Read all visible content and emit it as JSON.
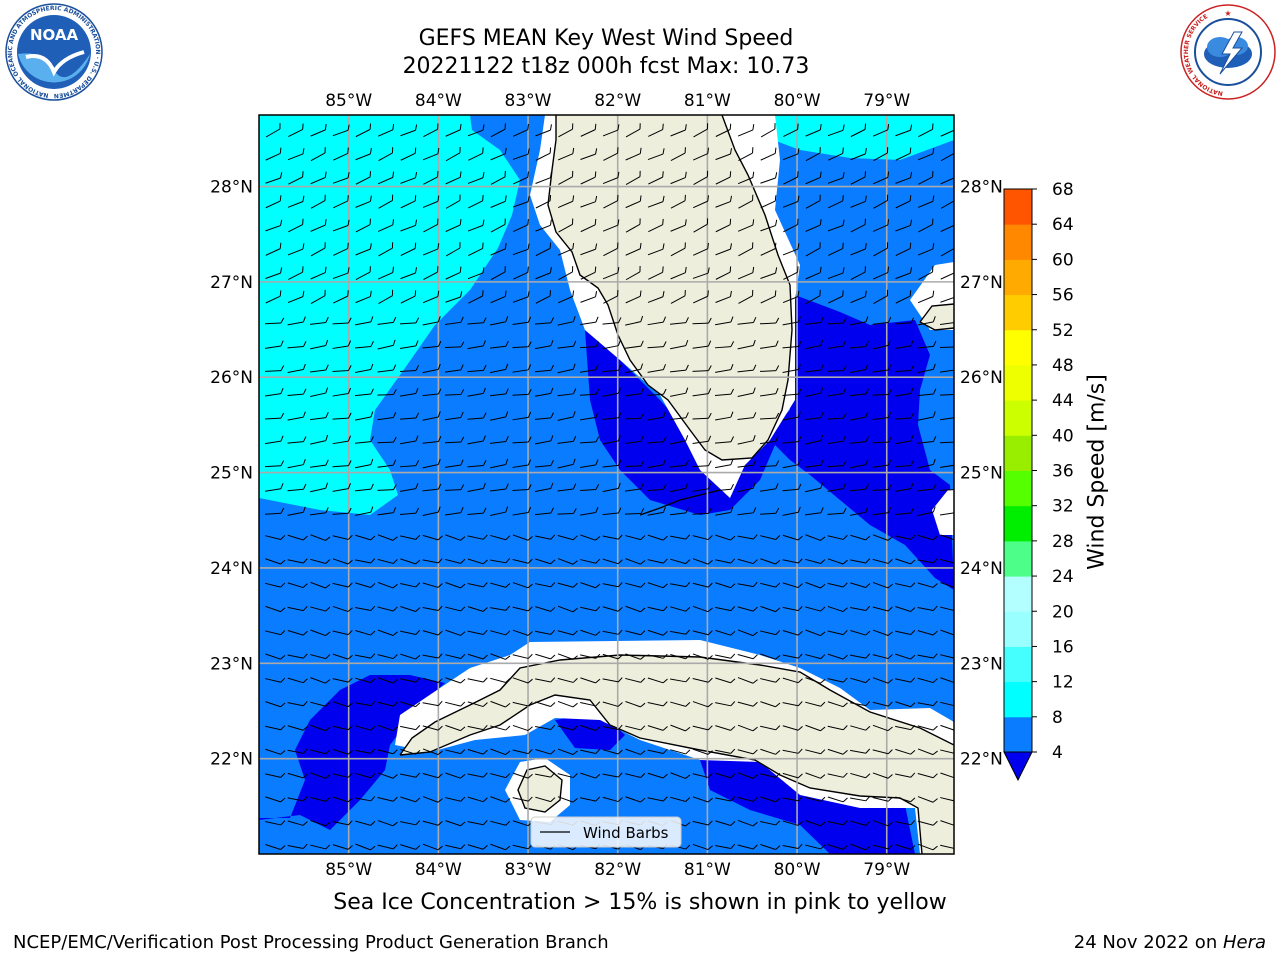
{
  "title_line1": "GEFS MEAN Key West Wind Speed",
  "title_line2": "20221122 t18z 000h fcst   Max: 10.73",
  "noaa_logo": {
    "text": "NOAA",
    "ring_text": "NATIONAL OCEANIC AND ATMOSPHERIC ADMINISTRATION · U.S. DEPARTMENT OF COMMERCE"
  },
  "nws_logo": {
    "ring_text": "NATIONAL WEATHER SERVICE"
  },
  "map": {
    "lon_range": [
      -86.0,
      -78.25
    ],
    "lat_range": [
      21.0,
      28.75
    ],
    "lon_ticks": [
      "85°W",
      "84°W",
      "83°W",
      "82°W",
      "81°W",
      "80°W",
      "79°W"
    ],
    "lon_tick_values": [
      -85,
      -84,
      -83,
      -82,
      -81,
      -80,
      -79
    ],
    "lat_ticks": [
      "28°N",
      "27°N",
      "26°N",
      "25°N",
      "24°N",
      "23°N",
      "22°N"
    ],
    "lat_tick_values": [
      28,
      27,
      26,
      25,
      24,
      23,
      22
    ],
    "legend_label": "Wind Barbs",
    "colors": {
      "land": "#eeeedd",
      "band_4_8": "#0a7cff",
      "band_8_12": "#00ffff",
      "below_4": "#0000ee",
      "coast": "#000000",
      "grid": "#aaaaaa"
    }
  },
  "colorbar": {
    "label": "Wind Speed [m/s]",
    "levels": [
      4,
      8,
      12,
      16,
      20,
      24,
      28,
      32,
      36,
      40,
      44,
      48,
      52,
      56,
      60,
      64,
      68
    ],
    "tick_labels": [
      "4",
      "8",
      "12",
      "16",
      "20",
      "24",
      "28",
      "32",
      "36",
      "40",
      "44",
      "48",
      "52",
      "56",
      "60",
      "64",
      "68"
    ],
    "colors": [
      "#0a7cff",
      "#00ffff",
      "#45ffff",
      "#99ffff",
      "#b3ffff",
      "#4dff88",
      "#00ee00",
      "#55ff00",
      "#99ee00",
      "#ccff00",
      "#eeff00",
      "#ffff00",
      "#ffcc00",
      "#ffaa00",
      "#ff8800",
      "#ff5500",
      "#ff2200",
      "#ff0000"
    ],
    "under_color": "#0000ee"
  },
  "caption": "Sea Ice Concentration > 15% is shown in pink to yellow",
  "footer_left": "NCEP/EMC/Verification Post Processing Product Generation Branch",
  "footer_date": "24 Nov 2022 on ",
  "footer_host": "Hera"
}
